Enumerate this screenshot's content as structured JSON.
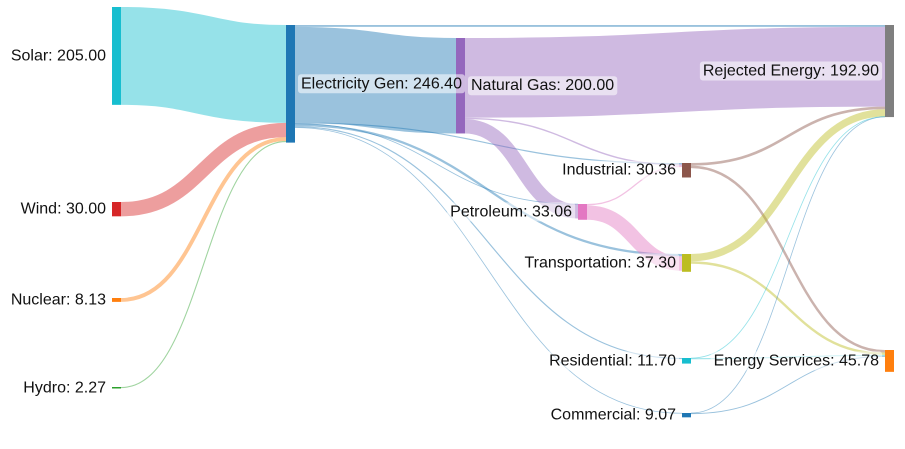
{
  "chart_data": {
    "type": "sankey",
    "title": "",
    "value_format": "%.2f",
    "nodes": [
      {
        "id": "solar",
        "name": "Solar",
        "value": 205.0,
        "color": "#17becf"
      },
      {
        "id": "wind",
        "name": "Wind",
        "value": 30.0,
        "color": "#d62728"
      },
      {
        "id": "nuclear",
        "name": "Nuclear",
        "value": 8.13,
        "color": "#ff7f0e"
      },
      {
        "id": "hydro",
        "name": "Hydro",
        "value": 2.27,
        "color": "#2ca02c"
      },
      {
        "id": "elec",
        "name": "Electricity Gen",
        "value": 246.4,
        "color": "#1f77b4"
      },
      {
        "id": "gas",
        "name": "Natural Gas",
        "value": 200.0,
        "color": "#9467bd"
      },
      {
        "id": "petroleum",
        "name": "Petroleum",
        "value": 33.06,
        "color": "#e377c2"
      },
      {
        "id": "industrial",
        "name": "Industrial",
        "value": 30.36,
        "color": "#8c564b"
      },
      {
        "id": "transport",
        "name": "Transportation",
        "value": 37.3,
        "color": "#bcbd22"
      },
      {
        "id": "residential",
        "name": "Residential",
        "value": 11.7,
        "color": "#17becf"
      },
      {
        "id": "commercial",
        "name": "Commercial",
        "value": 9.07,
        "color": "#1f77b4"
      },
      {
        "id": "rejected",
        "name": "Rejected Energy",
        "value": 192.9,
        "color": "#7f7f7f"
      },
      {
        "id": "services",
        "name": "Energy Services",
        "value": 45.78,
        "color": "#ff7f0e"
      }
    ],
    "links": [
      {
        "source": "solar",
        "target": "elec",
        "value": 205.0
      },
      {
        "source": "wind",
        "target": "elec",
        "value": 30.0
      },
      {
        "source": "nuclear",
        "target": "elec",
        "value": 8.13
      },
      {
        "source": "hydro",
        "target": "elec",
        "value": 2.27
      },
      {
        "source": "elec",
        "target": "rejected",
        "value": 4.0
      },
      {
        "source": "elec",
        "target": "gas",
        "value": 200.0
      },
      {
        "source": "elec",
        "target": "industrial",
        "value": 2.5
      },
      {
        "source": "elec",
        "target": "petroleum",
        "value": 0.5
      },
      {
        "source": "elec",
        "target": "transport",
        "value": 4.8
      },
      {
        "source": "elec",
        "target": "residential",
        "value": 2.4
      },
      {
        "source": "elec",
        "target": "commercial",
        "value": 1.2
      },
      {
        "source": "gas",
        "target": "rejected",
        "value": 167.0
      },
      {
        "source": "gas",
        "target": "industrial",
        "value": 3.0
      },
      {
        "source": "gas",
        "target": "petroleum",
        "value": 30.0
      },
      {
        "source": "petroleum",
        "target": "industrial",
        "value": 2.8
      },
      {
        "source": "petroleum",
        "target": "transport",
        "value": 30.26
      },
      {
        "source": "industrial",
        "target": "rejected",
        "value": 5.5
      },
      {
        "source": "industrial",
        "target": "services",
        "value": 5.2
      },
      {
        "source": "transport",
        "target": "rejected",
        "value": 15.3
      },
      {
        "source": "transport",
        "target": "services",
        "value": 5.0
      },
      {
        "source": "residential",
        "target": "rejected",
        "value": 0.5
      },
      {
        "source": "residential",
        "target": "services",
        "value": 2.2
      },
      {
        "source": "commercial",
        "target": "rejected",
        "value": 0.3
      },
      {
        "source": "commercial",
        "target": "services",
        "value": 2.0
      }
    ]
  }
}
